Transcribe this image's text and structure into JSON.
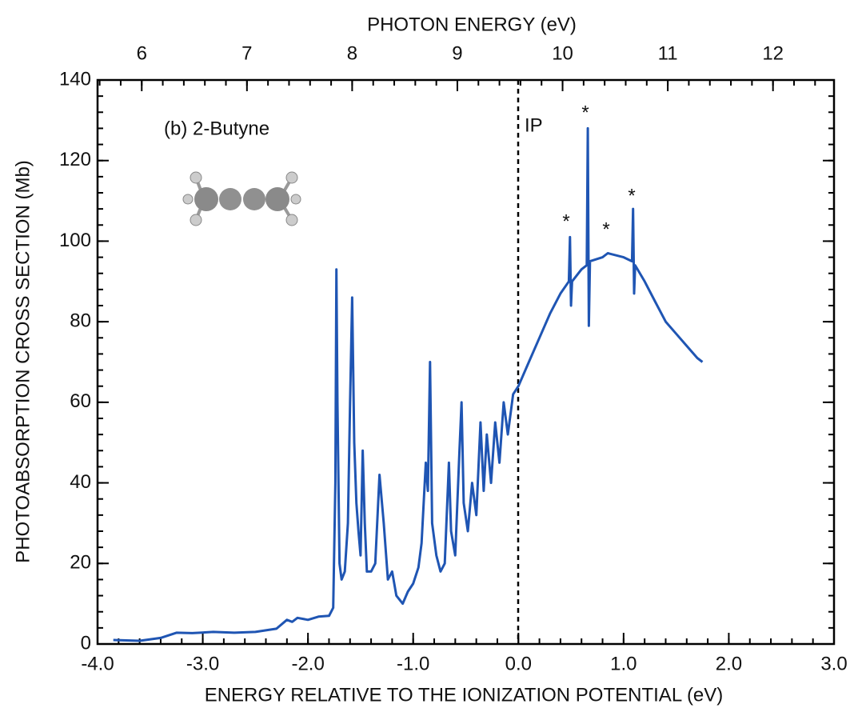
{
  "chart_data": {
    "type": "line",
    "xlabel": "ENERGY RELATIVE TO THE IONIZATION POTENTIAL  (eV)",
    "x2label": "PHOTON ENERGY  (eV)",
    "ylabel": "PHOTOABSORPTION CROSS SECTION  (Mb)",
    "annotations": [
      "(b) 2-Butyne",
      "IP",
      "*",
      "*",
      "*",
      "*"
    ],
    "xlim": [
      -4.0,
      3.0
    ],
    "xticks": [
      {
        "value": -4,
        "label": "-4.0"
      },
      {
        "value": -3,
        "label": "-3.0"
      },
      {
        "value": -2,
        "label": "-2.0"
      },
      {
        "value": -1,
        "label": "-1.0"
      },
      {
        "value": 0,
        "label": "0.0"
      },
      {
        "value": 1,
        "label": "1.0"
      },
      {
        "value": 2,
        "label": "2.0"
      },
      {
        "value": 3,
        "label": "3.0"
      }
    ],
    "x2lim": [
      5.58,
      12.58
    ],
    "x2ticks": [
      6,
      7,
      8,
      9,
      10,
      11,
      12
    ],
    "ylim": [
      0,
      140
    ],
    "yticks": [
      0,
      20,
      40,
      60,
      80,
      100,
      120,
      140
    ],
    "x": [
      -3.85,
      -3.6,
      -3.4,
      -3.25,
      -3.1,
      -2.9,
      -2.7,
      -2.5,
      -2.3,
      -2.2,
      -2.15,
      -2.1,
      -2.0,
      -1.9,
      -1.8,
      -1.76,
      -1.74,
      -1.73,
      -1.72,
      -1.7,
      -1.68,
      -1.65,
      -1.62,
      -1.6,
      -1.58,
      -1.56,
      -1.54,
      -1.52,
      -1.5,
      -1.48,
      -1.46,
      -1.44,
      -1.4,
      -1.36,
      -1.32,
      -1.28,
      -1.24,
      -1.2,
      -1.16,
      -1.1,
      -1.05,
      -1.0,
      -0.95,
      -0.92,
      -0.88,
      -0.86,
      -0.84,
      -0.82,
      -0.78,
      -0.74,
      -0.7,
      -0.66,
      -0.64,
      -0.6,
      -0.56,
      -0.54,
      -0.52,
      -0.48,
      -0.44,
      -0.4,
      -0.36,
      -0.33,
      -0.3,
      -0.26,
      -0.22,
      -0.18,
      -0.14,
      -0.1,
      -0.05,
      0.0,
      0.1,
      0.2,
      0.3,
      0.4,
      0.48,
      0.49,
      0.5,
      0.51,
      0.6,
      0.65,
      0.66,
      0.67,
      0.68,
      0.8,
      0.85,
      1.0,
      1.08,
      1.09,
      1.1,
      1.11,
      1.2,
      1.3,
      1.4,
      1.5,
      1.6,
      1.7,
      1.75
    ],
    "series": [
      {
        "color": "#1f55b3",
        "values": [
          1,
          0.8,
          1.5,
          2.8,
          2.7,
          3,
          2.8,
          3,
          3.8,
          6,
          5.5,
          6.5,
          6,
          6.8,
          7,
          9,
          40,
          93,
          60,
          20,
          16,
          18,
          30,
          60,
          86,
          50,
          35,
          28,
          22,
          48,
          30,
          18,
          18,
          20,
          42,
          30,
          16,
          18,
          12,
          10,
          13,
          15,
          19,
          25,
          45,
          38,
          70,
          30,
          22,
          18,
          20,
          45,
          28,
          22,
          48,
          60,
          35,
          28,
          40,
          32,
          55,
          38,
          52,
          40,
          55,
          45,
          60,
          52,
          62,
          64,
          70,
          76,
          82,
          87,
          90,
          101,
          84,
          90,
          93,
          94,
          128,
          79,
          95,
          96,
          97,
          96,
          95,
          108,
          87,
          94,
          90,
          85,
          80,
          77,
          74,
          71,
          70
        ]
      }
    ]
  }
}
